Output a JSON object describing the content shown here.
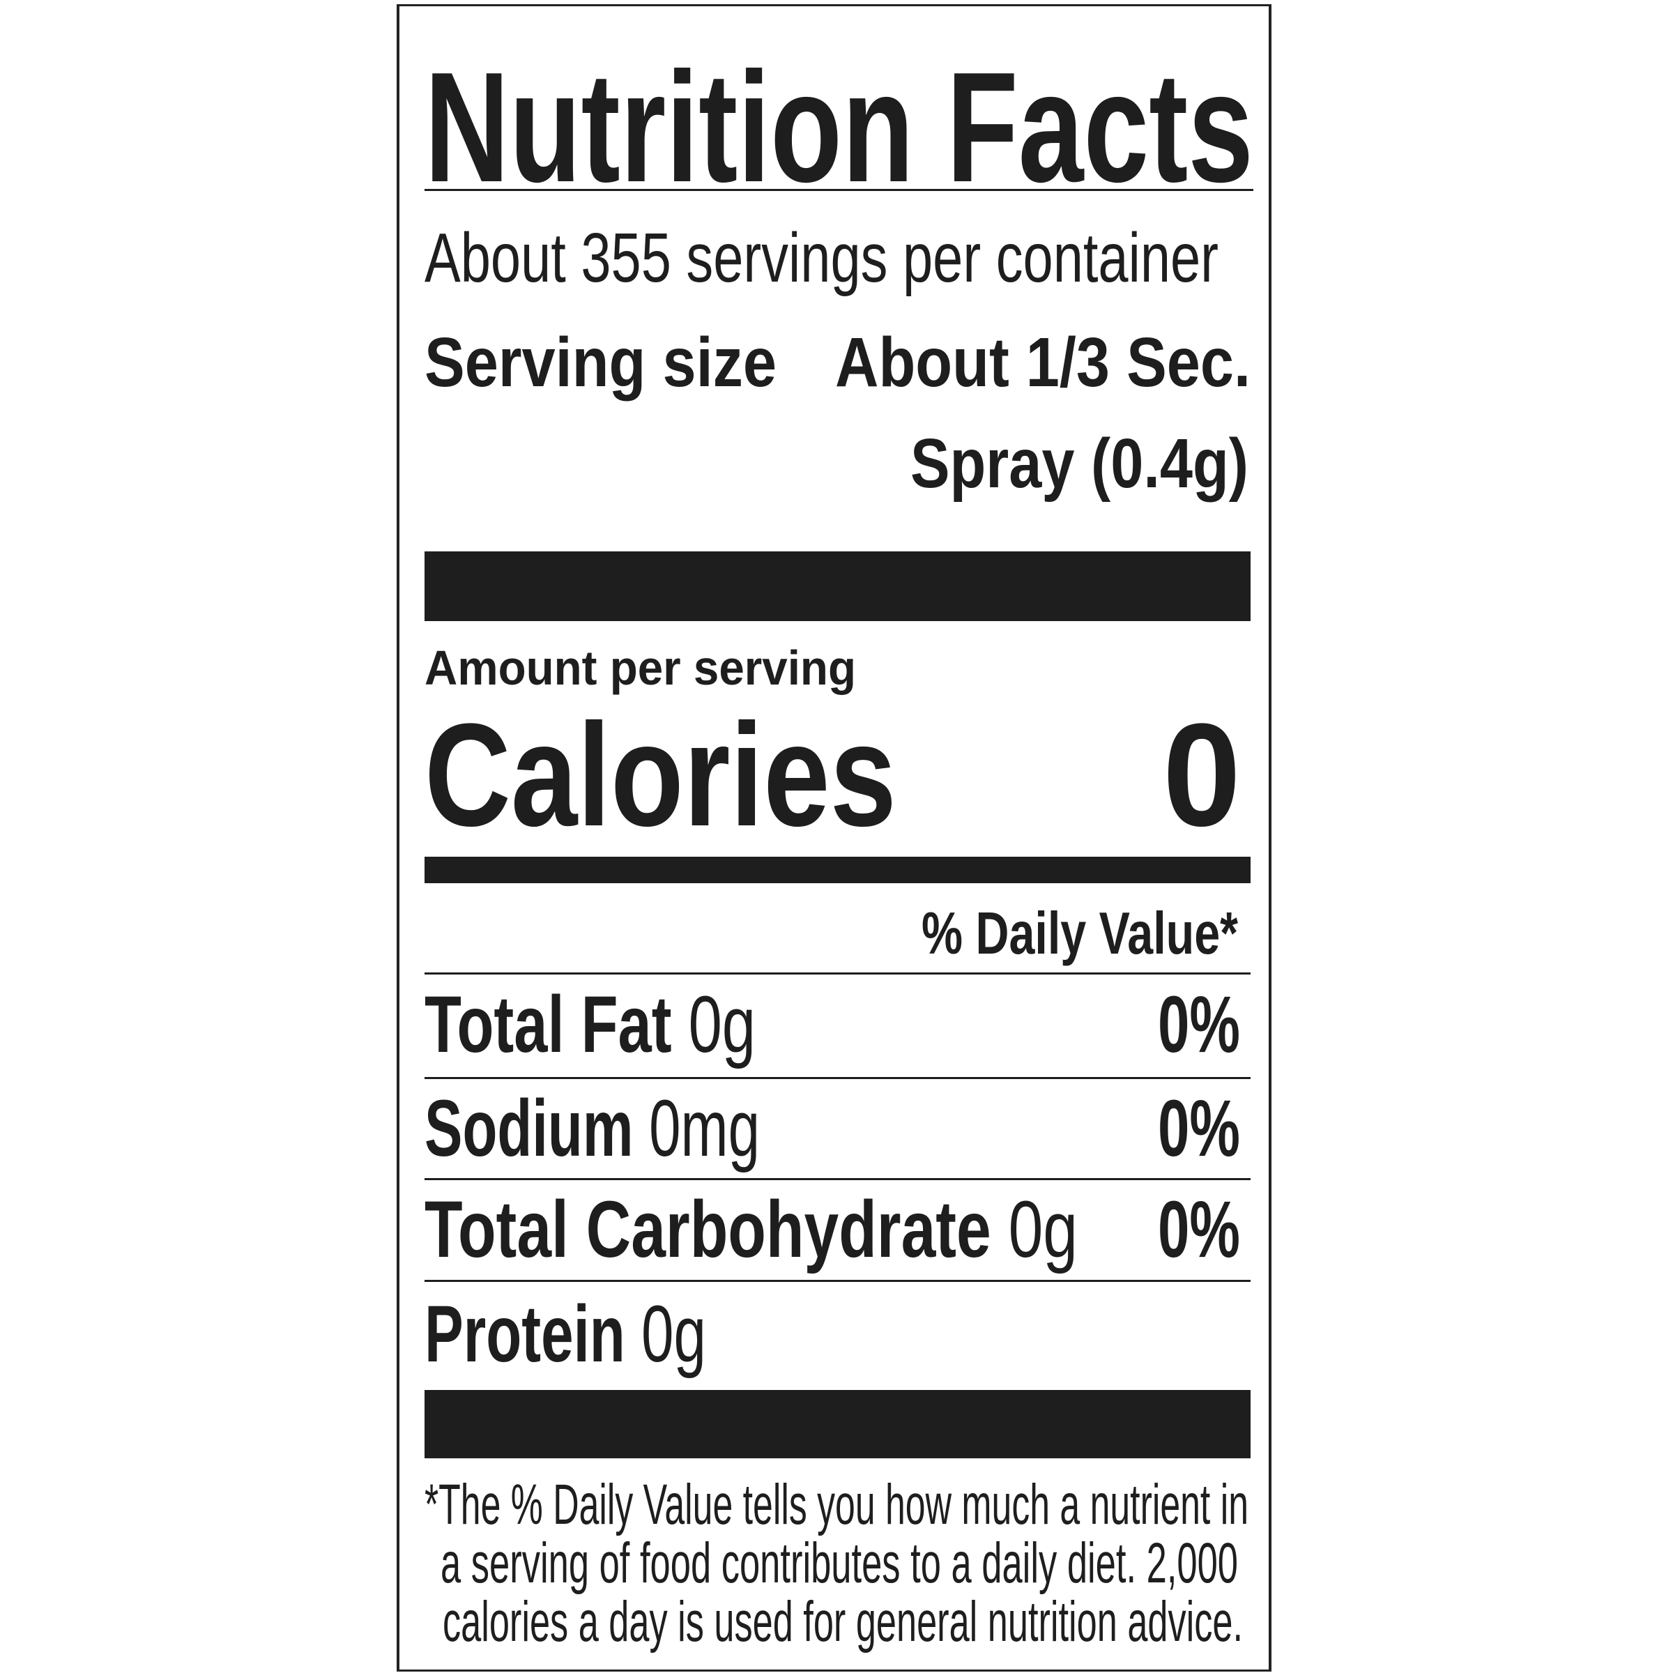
{
  "label": {
    "title": "Nutrition Facts",
    "servings_per_container": "About 355 servings per container",
    "serving_size": {
      "label": "Serving size",
      "value_line1": "About 1/3 Sec.",
      "value_line2": "Spray (0.4g)"
    },
    "amount_per_serving": "Amount per serving",
    "calories": {
      "label": "Calories",
      "value": "0"
    },
    "daily_value_header": "% Daily Value*",
    "nutrients": [
      {
        "name": "Total Fat",
        "amount": "0g",
        "dv": "0%"
      },
      {
        "name": "Sodium",
        "amount": "0mg",
        "dv": "0%"
      },
      {
        "name": "Total Carbohydrate",
        "amount": "0g",
        "dv": "0%"
      },
      {
        "name": "Protein",
        "amount": "0g"
      }
    ],
    "footnote": [
      "*The % Daily Value tells you how much a nutrient in",
      "a serving of food contributes to a daily diet. 2,000",
      "calories a day is used for general nutrition advice."
    ]
  }
}
